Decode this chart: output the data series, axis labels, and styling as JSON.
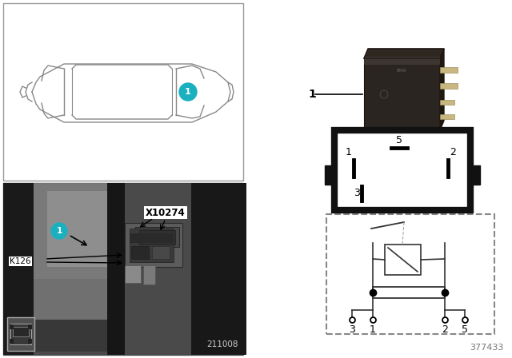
{
  "bg_color": "#ffffff",
  "teal": "#1ab0c0",
  "gray": "#666666",
  "dark": "#111111",
  "diagram_id": "377433",
  "photo_id": "211008",
  "K126": "K126",
  "X10274": "X10274",
  "relay_label": "1"
}
